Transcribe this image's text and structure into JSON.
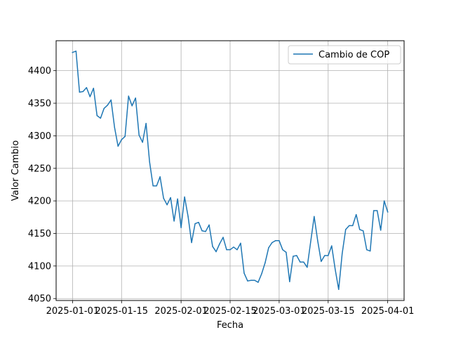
{
  "chart_data": {
    "type": "line",
    "title": "",
    "xlabel": "Fecha",
    "ylabel": "Valor Cambio",
    "grid": true,
    "legend_position": "top-right",
    "x_range": [
      "2025-01-01",
      "2025-04-01"
    ],
    "ylim": [
      4047,
      4446
    ],
    "x_ticks": [
      {
        "value": "2025-01-01",
        "label": "2025-01-01"
      },
      {
        "value": "2025-01-15",
        "label": "2025-01-15"
      },
      {
        "value": "2025-02-01",
        "label": "2025-02-01"
      },
      {
        "value": "2025-02-15",
        "label": "2025-02-15"
      },
      {
        "value": "2025-03-01",
        "label": "2025-03-01"
      },
      {
        "value": "2025-03-15",
        "label": "2025-03-15"
      },
      {
        "value": "2025-04-01",
        "label": "2025-04-01"
      }
    ],
    "y_ticks": [
      4050,
      4100,
      4150,
      4200,
      4250,
      4300,
      4350,
      4400
    ],
    "series": [
      {
        "name": "Cambio de COP",
        "color": "#1f77b4",
        "x": [
          "2025-01-01",
          "2025-01-02",
          "2025-01-03",
          "2025-01-04",
          "2025-01-05",
          "2025-01-06",
          "2025-01-07",
          "2025-01-08",
          "2025-01-09",
          "2025-01-10",
          "2025-01-11",
          "2025-01-12",
          "2025-01-13",
          "2025-01-14",
          "2025-01-15",
          "2025-01-16",
          "2025-01-17",
          "2025-01-18",
          "2025-01-19",
          "2025-01-20",
          "2025-01-21",
          "2025-01-22",
          "2025-01-23",
          "2025-01-24",
          "2025-01-25",
          "2025-01-26",
          "2025-01-27",
          "2025-01-28",
          "2025-01-29",
          "2025-01-30",
          "2025-01-31",
          "2025-02-01",
          "2025-02-02",
          "2025-02-03",
          "2025-02-04",
          "2025-02-05",
          "2025-02-06",
          "2025-02-07",
          "2025-02-08",
          "2025-02-09",
          "2025-02-10",
          "2025-02-11",
          "2025-02-12",
          "2025-02-13",
          "2025-02-14",
          "2025-02-15",
          "2025-02-16",
          "2025-02-17",
          "2025-02-18",
          "2025-02-19",
          "2025-02-20",
          "2025-02-21",
          "2025-02-22",
          "2025-02-23",
          "2025-02-24",
          "2025-02-25",
          "2025-02-26",
          "2025-02-27",
          "2025-02-28",
          "2025-03-01",
          "2025-03-02",
          "2025-03-03",
          "2025-03-04",
          "2025-03-05",
          "2025-03-06",
          "2025-03-07",
          "2025-03-08",
          "2025-03-09",
          "2025-03-10",
          "2025-03-11",
          "2025-03-12",
          "2025-03-13",
          "2025-03-14",
          "2025-03-15",
          "2025-03-16",
          "2025-03-17",
          "2025-03-18",
          "2025-03-19",
          "2025-03-20",
          "2025-03-21",
          "2025-03-22",
          "2025-03-23",
          "2025-03-24",
          "2025-03-25",
          "2025-03-26",
          "2025-03-27",
          "2025-03-28",
          "2025-03-29",
          "2025-03-30",
          "2025-03-31",
          "2025-04-01"
        ],
        "y": [
          4428,
          4430,
          4367,
          4368,
          4374,
          4360,
          4373,
          4331,
          4327,
          4342,
          4347,
          4355,
          4313,
          4284,
          4294,
          4299,
          4361,
          4346,
          4358,
          4301,
          4290,
          4319,
          4260,
          4223,
          4223,
          4237,
          4204,
          4194,
          4205,
          4169,
          4203,
          4159,
          4206,
          4176,
          4136,
          4165,
          4167,
          4154,
          4153,
          4163,
          4130,
          4122,
          4134,
          4144,
          4125,
          4125,
          4129,
          4125,
          4135,
          4089,
          4077,
          4078,
          4078,
          4075,
          4088,
          4105,
          4128,
          4136,
          4139,
          4139,
          4125,
          4121,
          4076,
          4115,
          4116,
          4106,
          4106,
          4098,
          4137,
          4176,
          4139,
          4107,
          4116,
          4116,
          4131,
          4095,
          4064,
          4119,
          4156,
          4162,
          4162,
          4179,
          4156,
          4154,
          4125,
          4123,
          4185,
          4185,
          4155,
          4200,
          4183
        ]
      }
    ]
  }
}
